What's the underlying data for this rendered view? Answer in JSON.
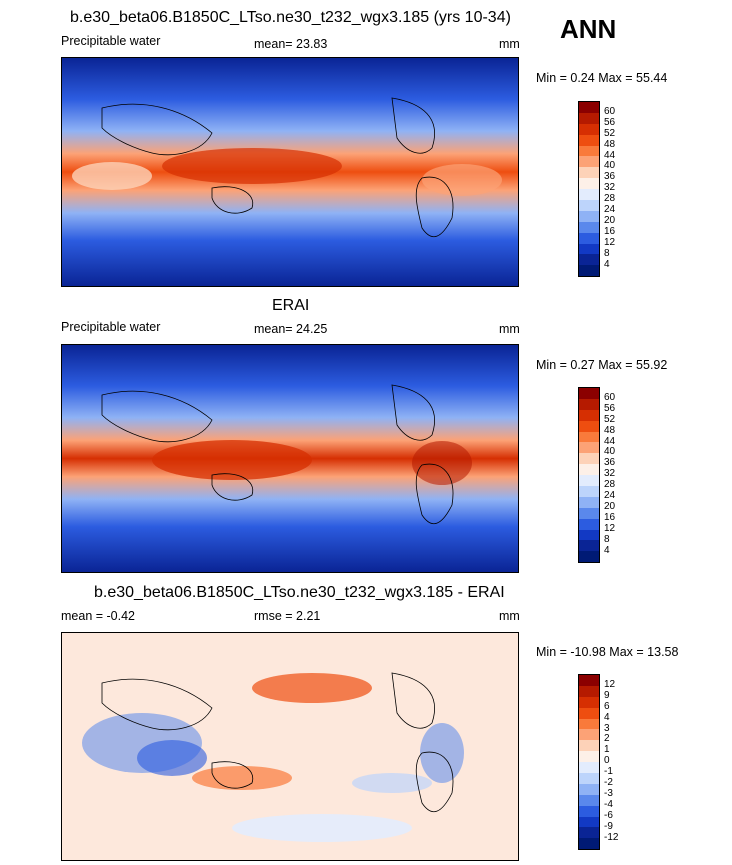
{
  "season": "ANN",
  "panels": [
    {
      "title": "b.e30_beta06.B1850C_LTso.ne30_t232_wgx3.185 (yrs 10-34)",
      "left_label": "Precipitable water",
      "center_label": "mean=  23.83",
      "units": "mm",
      "minmax": "Min =   0.24 Max =  55.44",
      "colorbar": {
        "labels": [
          "60",
          "56",
          "52",
          "48",
          "44",
          "40",
          "36",
          "32",
          "28",
          "24",
          "20",
          "16",
          "12",
          "8",
          "4"
        ],
        "colors": [
          "#8b0000",
          "#b51a00",
          "#d62f02",
          "#ee4e10",
          "#f97a3b",
          "#fca276",
          "#fdd2b8",
          "#fdf0e8",
          "#e3ecfd",
          "#bdd4fb",
          "#8fb2f5",
          "#5a88ec",
          "#2c5ce0",
          "#1239c4",
          "#0a2495",
          "#001a75"
        ]
      }
    },
    {
      "title": "ERAI",
      "left_label": "Precipitable water",
      "center_label": "mean=  24.25",
      "units": "mm",
      "minmax": "Min =   0.27 Max =  55.92",
      "colorbar": {
        "labels": [
          "60",
          "56",
          "52",
          "48",
          "44",
          "40",
          "36",
          "32",
          "28",
          "24",
          "20",
          "16",
          "12",
          "8",
          "4"
        ],
        "colors": [
          "#8b0000",
          "#b51a00",
          "#d62f02",
          "#ee4e10",
          "#f97a3b",
          "#fca276",
          "#fdd2b8",
          "#fdf0e8",
          "#e3ecfd",
          "#bdd4fb",
          "#8fb2f5",
          "#5a88ec",
          "#2c5ce0",
          "#1239c4",
          "#0a2495",
          "#001a75"
        ]
      }
    },
    {
      "title": "b.e30_beta06.B1850C_LTso.ne30_t232_wgx3.185 - ERAI",
      "left_label": "mean =  -0.42",
      "center_label": "rmse =   2.21",
      "units": "mm",
      "minmax": "Min = -10.98 Max =  13.58",
      "colorbar": {
        "labels": [
          "12",
          "9",
          "6",
          "4",
          "3",
          "2",
          "1",
          "0",
          "-1",
          "-2",
          "-3",
          "-4",
          "-6",
          "-9",
          "-12"
        ],
        "colors": [
          "#8b0000",
          "#b51a00",
          "#d62f02",
          "#ee4e10",
          "#f97a3b",
          "#fca276",
          "#fdd2b8",
          "#fdf0e8",
          "#e3ecfd",
          "#bdd4fb",
          "#8fb2f5",
          "#5a88ec",
          "#2c5ce0",
          "#1239c4",
          "#0a2495",
          "#001a75"
        ]
      }
    }
  ]
}
